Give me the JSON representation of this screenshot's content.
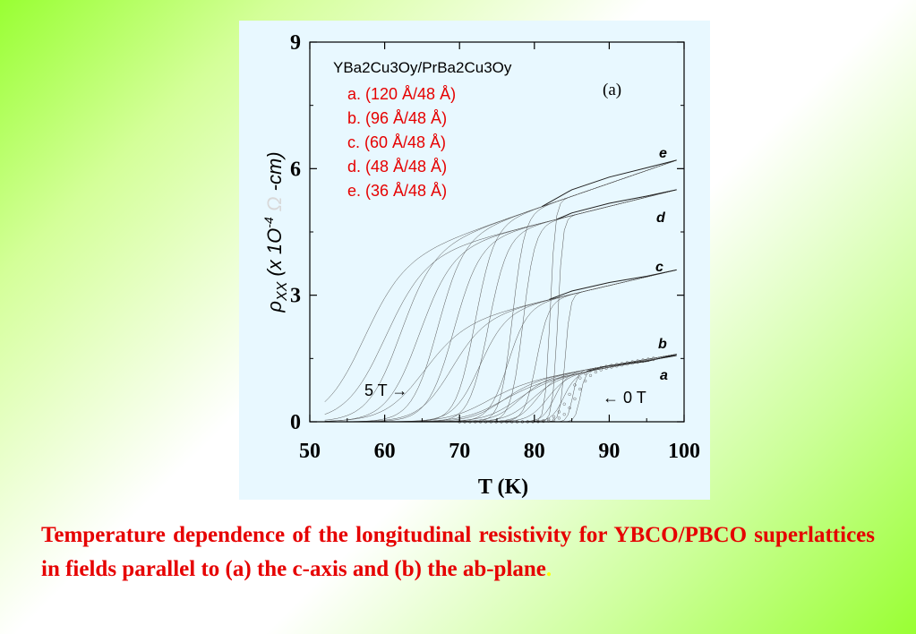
{
  "caption": {
    "text": "Temperature dependence of the longitudinal resistivity  for YBCO/PBCO superlattices in fields parallel to (a) the c-axis and (b) the ab-plane",
    "trailing": "."
  },
  "chart_data": {
    "type": "line",
    "title": "",
    "panel_label": "(a)",
    "xlabel": "T (K)",
    "ylabel": "ρ_XX (x 1O^-4 Ω-cm)",
    "xlim": [
      50,
      100
    ],
    "ylim": [
      0,
      9
    ],
    "xticks": [
      50,
      60,
      70,
      80,
      90,
      100
    ],
    "yticks": [
      0,
      3,
      6,
      9
    ],
    "grid": false,
    "legend_position": "top-left",
    "legend_title": "YBa2Cu3Oy/PrBa2Cu3Oy",
    "legend_entries": [
      "a. (120 Å/48 Å)",
      "b. (96 Å/48 Å)",
      "c. (60 Å/48 Å)",
      "d. (48 Å/48 Å)",
      "e. (36 Å/48 Å)"
    ],
    "annotations": [
      "5 T →",
      "← 0 T"
    ],
    "colors": {
      "legend_text": "#e60000",
      "curves": "#333333",
      "panel": "#e8f8ff",
      "caption": "#e60000"
    },
    "series": [
      {
        "name": "a",
        "normal_state": [
          [
            87,
            1.2
          ],
          [
            90,
            1.33
          ],
          [
            95,
            1.45
          ],
          [
            99,
            1.57
          ]
        ],
        "transition_onset_0T": 87,
        "transition_onset_5T": 82
      },
      {
        "name": "b",
        "normal_state": [
          [
            89,
            1.3
          ],
          [
            95,
            1.43
          ],
          [
            99,
            1.6
          ]
        ],
        "transition_onset_0T": 86,
        "transition_onset_5T": 80
      },
      {
        "name": "c",
        "normal_state": [
          [
            82,
            2.9
          ],
          [
            85,
            3.1
          ],
          [
            90,
            3.3
          ],
          [
            95,
            3.45
          ],
          [
            99,
            3.6
          ]
        ],
        "transition_onset_0T": 85,
        "transition_onset_5T": 72
      },
      {
        "name": "d",
        "normal_state": [
          [
            83,
            4.8
          ],
          [
            85,
            4.95
          ],
          [
            90,
            5.18
          ],
          [
            95,
            5.35
          ],
          [
            99,
            5.5
          ]
        ],
        "transition_onset_0T": 84,
        "transition_onset_5T": 67
      },
      {
        "name": "e",
        "normal_state": [
          [
            81,
            5.1
          ],
          [
            85,
            5.5
          ],
          [
            90,
            5.8
          ],
          [
            95,
            6.02
          ],
          [
            99,
            6.2
          ]
        ],
        "transition_onset_0T": 83,
        "transition_onset_5T": 64
      }
    ]
  }
}
